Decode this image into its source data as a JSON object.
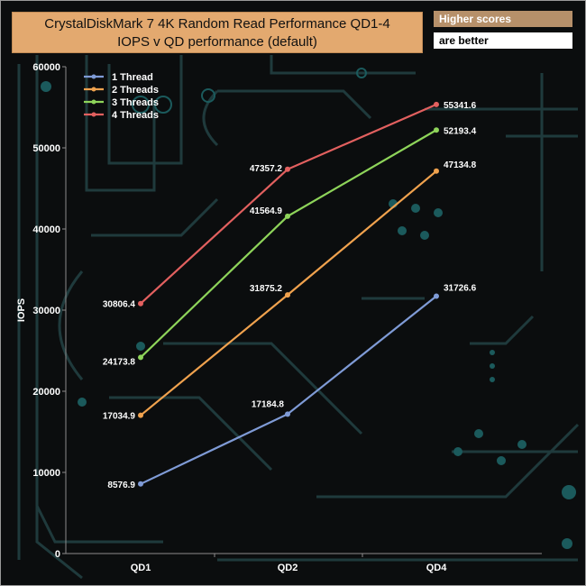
{
  "title_line1": "CrystalDiskMark 7 4K Random Read Performance QD1-4",
  "title_line2": "IOPS v QD performance (default)",
  "note_line1": "Higher scores",
  "note_line2": "are better",
  "chart_data": {
    "type": "line",
    "title": "CrystalDiskMark 7 4K Random Read Performance QD1-4",
    "subtitle": "IOPS v QD performance (default)",
    "xlabel": "",
    "ylabel": "IOPS",
    "categories": [
      "QD1",
      "QD2",
      "QD4"
    ],
    "ylim": [
      0,
      60000
    ],
    "yticks": [
      0,
      10000,
      20000,
      30000,
      40000,
      50000,
      60000
    ],
    "grid": false,
    "legend_position": "top-left",
    "series": [
      {
        "name": "1 Thread",
        "color": "#7f9bd6",
        "values": [
          8576.9,
          17184.8,
          31726.6
        ]
      },
      {
        "name": "2 Threads",
        "color": "#f0a24e",
        "values": [
          17034.9,
          31875.2,
          47134.8
        ]
      },
      {
        "name": "3 Threads",
        "color": "#8ed45a",
        "values": [
          24173.8,
          41564.9,
          52193.4
        ]
      },
      {
        "name": "4 Threads",
        "color": "#e2605f",
        "values": [
          30806.4,
          47357.2,
          55341.6
        ]
      }
    ]
  }
}
